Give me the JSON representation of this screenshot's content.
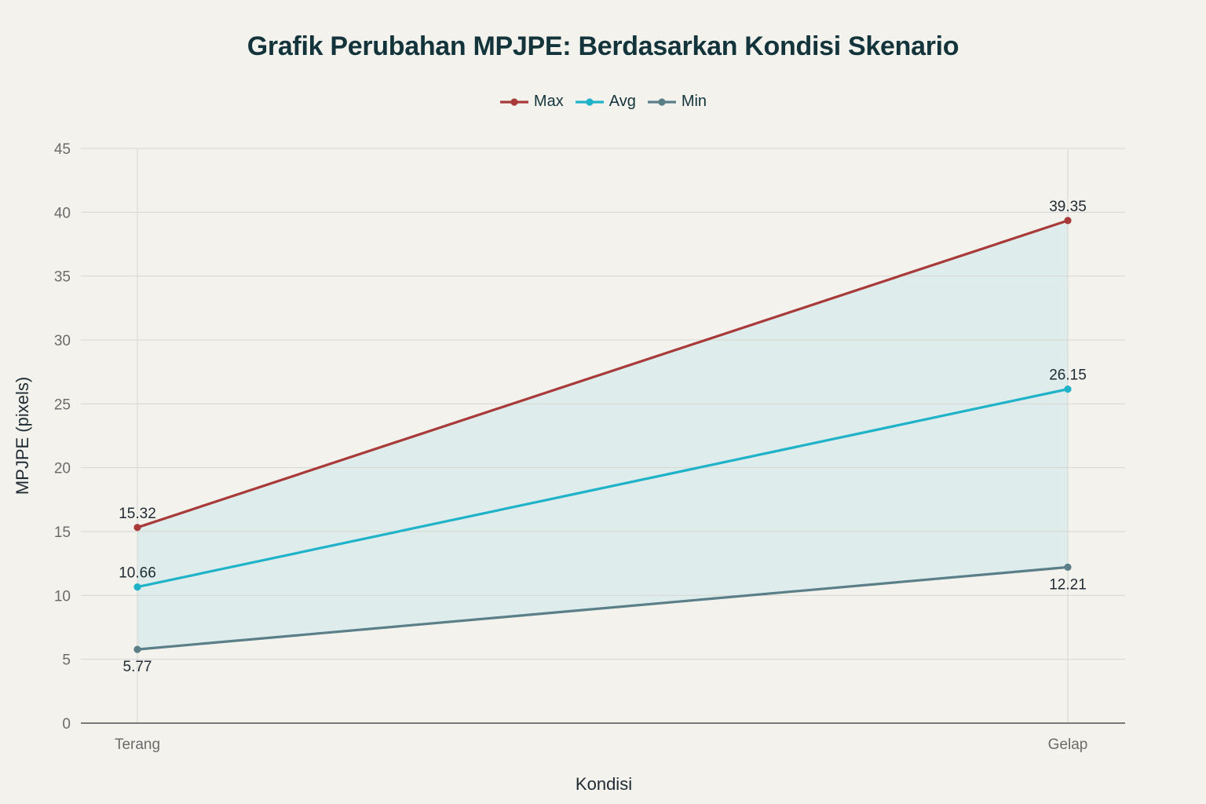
{
  "chart_data": {
    "type": "line",
    "title": "Grafik Perubahan MPJPE: Berdasarkan Kondisi Skenario",
    "xlabel": "Kondisi",
    "ylabel": "MPJPE (pixels)",
    "categories": [
      "Terang",
      "Gelap"
    ],
    "ylim": [
      0,
      45
    ],
    "yticks": [
      0,
      5,
      10,
      15,
      20,
      25,
      30,
      35,
      40,
      45
    ],
    "grid": true,
    "legend_position": "top-center",
    "shaded_band": {
      "between": [
        "Min",
        "Max"
      ],
      "color": "#dcecea"
    },
    "series": [
      {
        "name": "Max",
        "values": [
          15.32,
          39.35
        ],
        "labels": [
          "15.32",
          "39.35"
        ],
        "color": "#a83a3a",
        "label_position": [
          "above",
          "above"
        ]
      },
      {
        "name": "Avg",
        "values": [
          10.66,
          26.15
        ],
        "labels": [
          "10.66",
          "26.15"
        ],
        "color": "#1fb2c8",
        "label_position": [
          "above",
          "above"
        ]
      },
      {
        "name": "Min",
        "values": [
          5.77,
          12.21
        ],
        "labels": [
          "5.77",
          "12.21"
        ],
        "color": "#5a7f89",
        "label_position": [
          "below",
          "below"
        ]
      }
    ]
  }
}
